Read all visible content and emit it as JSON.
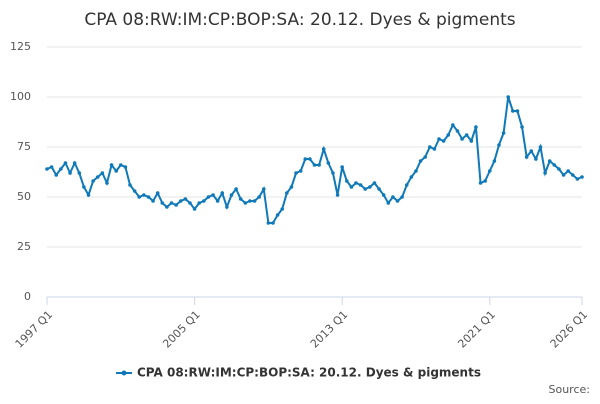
{
  "chart_data": {
    "type": "line",
    "title": "CPA 08:RW:IM:CP:BOP:SA: 20.12. Dyes & pigments",
    "source": "Source:",
    "categories": [
      "1997 Q1",
      null,
      null,
      null,
      null,
      null,
      null,
      null,
      null,
      null,
      null,
      null,
      null,
      null,
      null,
      null,
      null,
      null,
      null,
      null,
      null,
      null,
      null,
      null,
      null,
      null,
      null,
      null,
      null,
      null,
      null,
      null,
      "2005 Q1",
      null,
      null,
      null,
      null,
      null,
      null,
      null,
      null,
      null,
      null,
      null,
      null,
      null,
      null,
      null,
      null,
      null,
      null,
      null,
      null,
      null,
      null,
      null,
      null,
      null,
      null,
      null,
      null,
      null,
      null,
      null,
      "2013 Q1",
      null,
      null,
      null,
      null,
      null,
      null,
      null,
      null,
      null,
      null,
      null,
      null,
      null,
      null,
      null,
      null,
      null,
      null,
      null,
      null,
      null,
      null,
      null,
      null,
      null,
      null,
      null,
      null,
      null,
      null,
      null,
      "2021 Q1",
      null,
      null,
      null,
      null,
      null,
      null,
      null,
      null,
      null,
      null,
      null,
      null,
      null,
      null,
      null,
      null,
      null,
      null,
      null,
      "2026 Q1"
    ],
    "series": [
      {
        "name": "CPA 08:RW:IM:CP:BOP:SA: 20.12. Dyes & pigments",
        "color": "#0f79b9",
        "values": [
          64,
          65,
          61,
          64,
          67,
          62,
          67,
          62,
          55,
          51,
          58,
          60,
          62,
          57,
          66,
          63,
          66,
          65,
          56,
          53,
          50,
          51,
          50,
          48,
          52,
          47,
          45,
          47,
          46,
          48,
          49,
          47,
          44,
          47,
          48,
          50,
          51,
          48,
          52,
          45,
          51,
          54,
          49,
          47,
          48,
          48,
          50,
          54,
          37,
          37,
          41,
          44,
          52,
          55,
          62,
          63,
          69,
          69,
          66,
          66,
          74,
          67,
          62,
          51,
          65,
          58,
          55,
          57,
          56,
          54,
          55,
          57,
          54,
          51,
          47,
          50,
          48,
          50,
          56,
          60,
          63,
          68,
          70,
          75,
          74,
          79,
          78,
          81,
          86,
          83,
          79,
          81,
          78,
          85,
          57,
          58,
          63,
          68,
          76,
          82,
          100,
          93,
          93,
          85,
          70,
          73,
          69,
          75,
          62,
          68,
          66,
          64,
          61,
          63,
          61,
          59,
          60
        ]
      }
    ],
    "ylim": [
      0,
      125
    ],
    "yticks": [
      0,
      25,
      50,
      75,
      100,
      125
    ],
    "grid": true,
    "legend": "bottom"
  }
}
